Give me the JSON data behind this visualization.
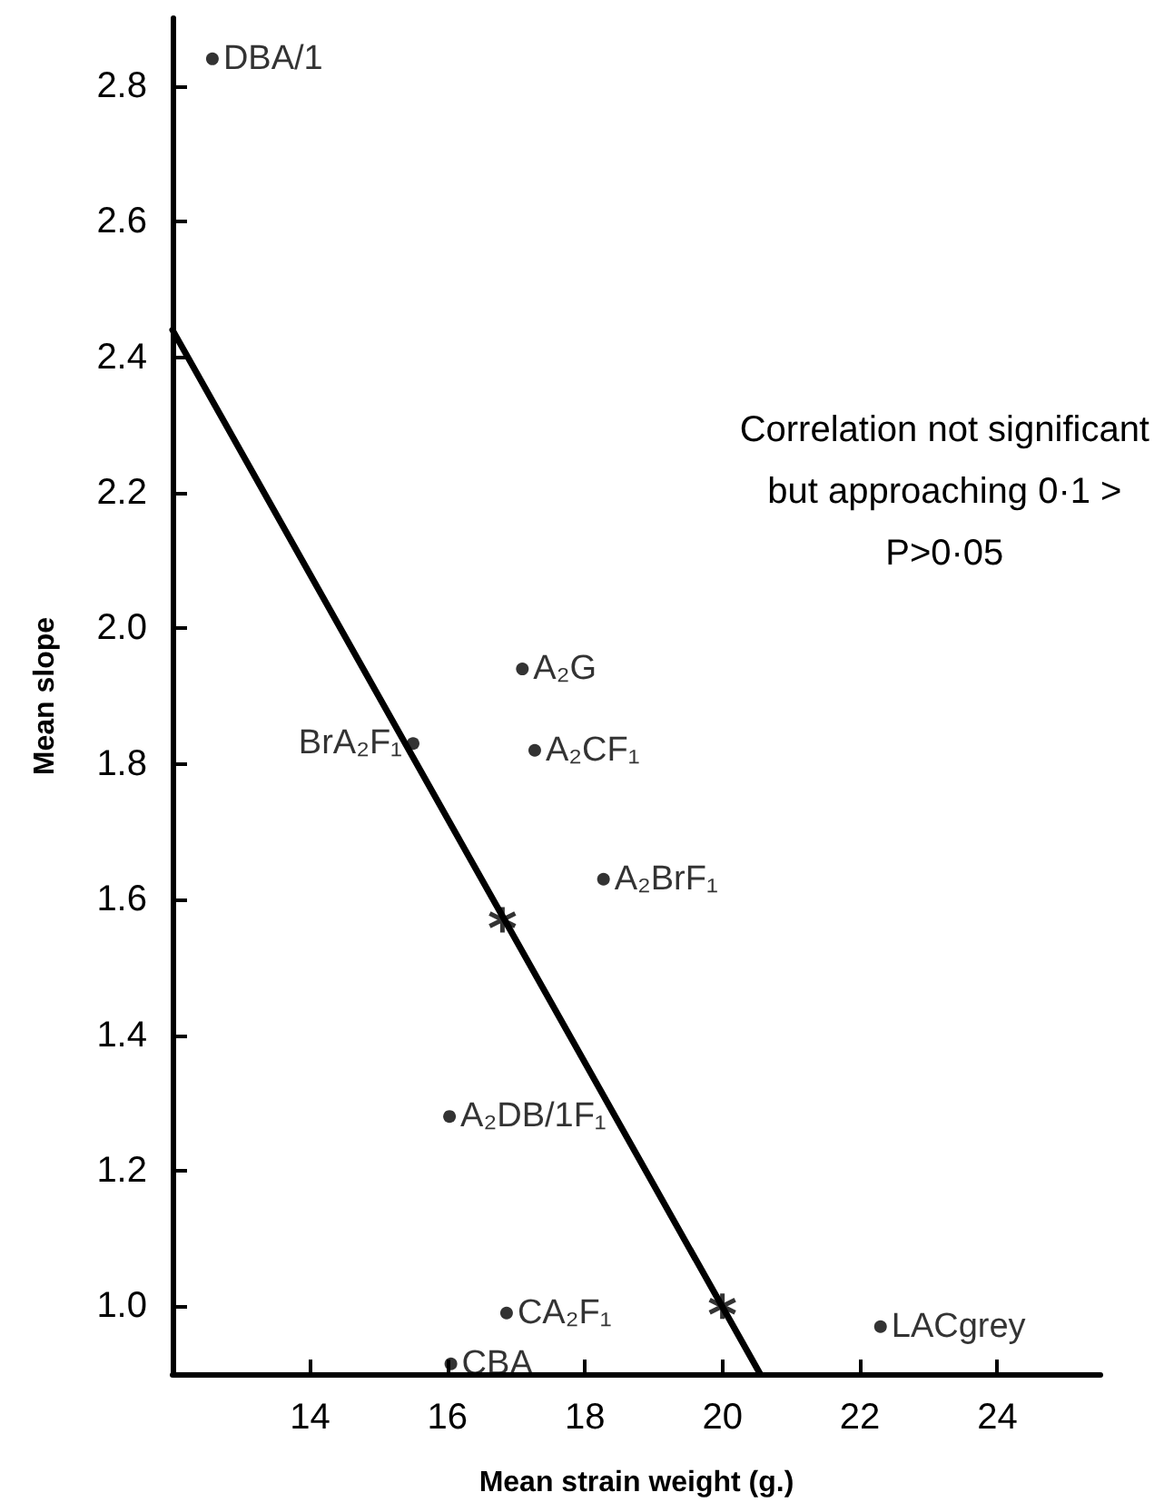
{
  "chart_data": {
    "type": "scatter",
    "xlabel": "Mean strain weight (g.)",
    "ylabel": "Mean slope",
    "xlim": [
      12,
      25.5
    ],
    "xticks": [
      14,
      16,
      18,
      20,
      22,
      24
    ],
    "ylim": [
      0.9,
      2.9
    ],
    "yticks": [
      {
        "value": 1.0,
        "label": "1.0"
      },
      1.2,
      1.4,
      1.6,
      1.8,
      {
        "value": 2.0,
        "label": "2.0"
      },
      2.2,
      2.4,
      2.6,
      2.8
    ],
    "grid": false,
    "series": [
      {
        "color": "#000000",
        "marker": "circle",
        "x": [
          12.58,
          17.09,
          15.5,
          17.27,
          18.27,
          16.03,
          16.86,
          16.05,
          22.3
        ],
        "values": [
          2.84,
          1.94,
          1.83,
          1.82,
          1.63,
          1.28,
          0.99,
          0.915,
          0.97
        ]
      },
      {
        "color": "#000000",
        "marker": "cross",
        "x": [
          16.8,
          20.0
        ],
        "values": [
          1.57,
          1.0
        ]
      },
      {
        "type": "line",
        "color": "#000000",
        "marker": "none",
        "line_style": "solid",
        "x": [
          12,
          20.55
        ],
        "values": [
          2.44,
          0.9
        ]
      }
    ],
    "annotations": [
      {
        "text": "DBA/1",
        "x": 12.58,
        "y": 2.84
      },
      {
        "text": "A₂G",
        "x": 17.09,
        "y": 1.94
      },
      {
        "text": "BrA₂F₁",
        "x": 15.5,
        "y": 1.83
      },
      {
        "text": "A₂CF₁",
        "x": 17.27,
        "y": 1.82
      },
      {
        "text": "A₂BrF₁",
        "x": 18.27,
        "y": 1.63
      },
      {
        "text": "A₂DB/1F₁",
        "x": 16.03,
        "y": 1.28
      },
      {
        "text": "CA₂F₁",
        "x": 16.86,
        "y": 0.99
      },
      {
        "text": "CBA",
        "x": 16.05,
        "y": 0.915
      },
      {
        "text": "LACgrey",
        "x": 22.3,
        "y": 0.97
      },
      "Correlation not significant\nbut approaching 0·1 >\nP>0·05"
    ]
  }
}
